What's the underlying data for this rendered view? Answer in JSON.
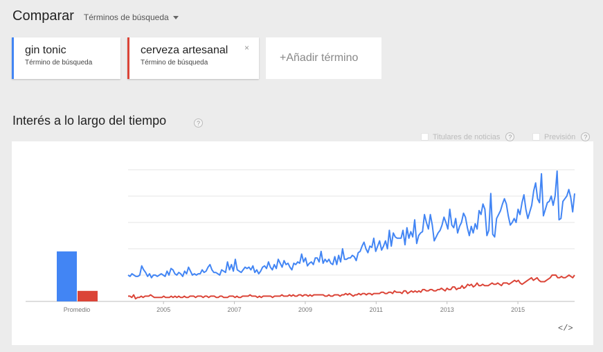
{
  "header": {
    "title": "Comparar",
    "dropdown_label": "Términos de búsqueda"
  },
  "terms": [
    {
      "name": "gin tonic",
      "type": "Término de búsqueda",
      "color": "#4285f4"
    },
    {
      "name": "cerveza artesanal",
      "type": "Término de búsqueda",
      "color": "#db4437",
      "close": "×"
    }
  ],
  "add_term": {
    "label": "+Añadir término"
  },
  "section": {
    "title": "Interés a lo largo del tiempo",
    "help": "?"
  },
  "options": [
    {
      "label": "Titulares de noticias",
      "help": "?"
    },
    {
      "label": "Previsión",
      "help": "?"
    }
  ],
  "embed_label": "</>",
  "chart_data": {
    "type": "line",
    "average_bars": {
      "label": "Promedio",
      "series": [
        {
          "values": [
            38
          ],
          "color": "#4285f4"
        },
        {
          "values": [
            8
          ],
          "color": "#db4437"
        }
      ]
    },
    "x_ticks": [
      "2005",
      "2007",
      "2009",
      "2011",
      "2013",
      "2015"
    ],
    "x_range": [
      2004.0,
      2016.6
    ],
    "ylim": [
      0,
      100
    ],
    "grid": true,
    "legend": "none",
    "series": [
      {
        "color": "#4285f4",
        "values": [
          20,
          19,
          21,
          20,
          19,
          19,
          20,
          27,
          24,
          22,
          19,
          21,
          18,
          20,
          20,
          19,
          20,
          21,
          20,
          19,
          23,
          20,
          25,
          24,
          21,
          20,
          22,
          21,
          19,
          23,
          21,
          26,
          23,
          20,
          21,
          20,
          21,
          21,
          24,
          22,
          23,
          26,
          28,
          24,
          22,
          22,
          21,
          20,
          24,
          23,
          22,
          30,
          24,
          28,
          23,
          32,
          24,
          23,
          22,
          24,
          26,
          25,
          26,
          24,
          27,
          22,
          24,
          21,
          23,
          26,
          27,
          25,
          30,
          26,
          24,
          28,
          25,
          32,
          29,
          26,
          31,
          28,
          29,
          26,
          24,
          29,
          28,
          30,
          29,
          36,
          30,
          33,
          27,
          29,
          30,
          28,
          33,
          33,
          30,
          38,
          29,
          32,
          30,
          32,
          29,
          28,
          34,
          28,
          35,
          30,
          40,
          32,
          32,
          33,
          33,
          35,
          34,
          31,
          37,
          38,
          42,
          45,
          40,
          37,
          42,
          41,
          48,
          38,
          42,
          46,
          39,
          42,
          46,
          40,
          54,
          42,
          52,
          49,
          48,
          48,
          48,
          54,
          43,
          56,
          48,
          53,
          49,
          62,
          44,
          50,
          52,
          53,
          66,
          60,
          55,
          66,
          58,
          46,
          49,
          52,
          54,
          58,
          64,
          60,
          55,
          70,
          58,
          56,
          63,
          52,
          57,
          60,
          67,
          64,
          56,
          50,
          57,
          52,
          59,
          55,
          69,
          66,
          74,
          70,
          50,
          54,
          82,
          51,
          49,
          63,
          66,
          69,
          74,
          78,
          74,
          65,
          58,
          60,
          63,
          60,
          70,
          66,
          75,
          81,
          70,
          63,
          68,
          73,
          84,
          90,
          78,
          75,
          97,
          65,
          70,
          75,
          76,
          80,
          73,
          80,
          99,
          62,
          63,
          76,
          78,
          80,
          85,
          79,
          68,
          82
        ]
      },
      {
        "color": "#db4437",
        "values": [
          4,
          4,
          3,
          5,
          2,
          3,
          3,
          4,
          3,
          4,
          4,
          4,
          5,
          4,
          3,
          3,
          3,
          3,
          3,
          4,
          3,
          3,
          3,
          4,
          3,
          4,
          3,
          4,
          3,
          3,
          4,
          3,
          3,
          4,
          4,
          4,
          3,
          4,
          4,
          4,
          3,
          4,
          4,
          3,
          4,
          4,
          4,
          3,
          3,
          4,
          4,
          3,
          3,
          3,
          4,
          4,
          4,
          3,
          4,
          3,
          3,
          4,
          4,
          4,
          4,
          5,
          4,
          4,
          4,
          3,
          4,
          3,
          4,
          4,
          4,
          4,
          4,
          3,
          4,
          4,
          4,
          4,
          5,
          4,
          4,
          4,
          5,
          4,
          5,
          4,
          4,
          5,
          5,
          4,
          5,
          5,
          4,
          5,
          4,
          5,
          5,
          5,
          5,
          5,
          5,
          4,
          4,
          5,
          4,
          4,
          5,
          5,
          5,
          4,
          5,
          5,
          6,
          5,
          6,
          5,
          4,
          5,
          5,
          6,
          5,
          6,
          6,
          5,
          6,
          6,
          5,
          6,
          6,
          6,
          6,
          7,
          7,
          6,
          6,
          7,
          7,
          6,
          8,
          7,
          7,
          7,
          6,
          8,
          8,
          6,
          7,
          8,
          7,
          8,
          7,
          8,
          7,
          9,
          9,
          8,
          8,
          9,
          9,
          8,
          8,
          9,
          9,
          10,
          9,
          8,
          10,
          9,
          9,
          11,
          11,
          9,
          10,
          10,
          12,
          10,
          11,
          13,
          12,
          13,
          11,
          12,
          14,
          12,
          12,
          13,
          12,
          12,
          12,
          13,
          14,
          13,
          13,
          14,
          13,
          12,
          14,
          14,
          14,
          13,
          14,
          15,
          16,
          15,
          16,
          14,
          13,
          14,
          15,
          16,
          17,
          18,
          16,
          17,
          18,
          16,
          15,
          15,
          15,
          16,
          17,
          18,
          20,
          20,
          20,
          18,
          18,
          19,
          18,
          18,
          19,
          20,
          19,
          18,
          20
        ]
      }
    ]
  }
}
